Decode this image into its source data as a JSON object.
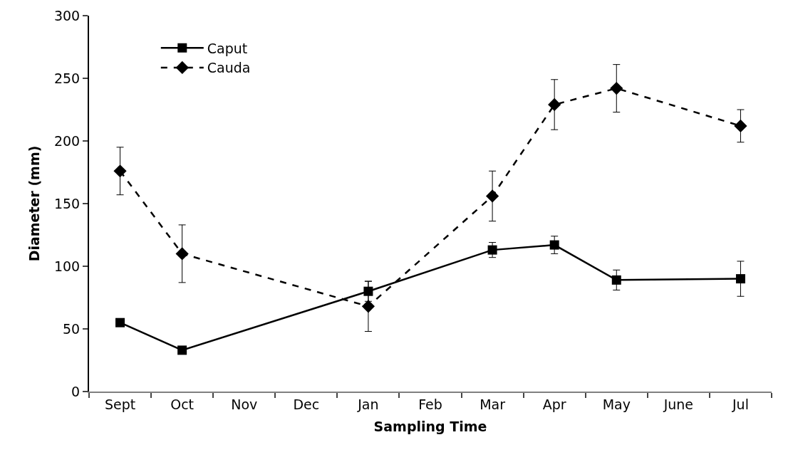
{
  "chart_data": {
    "type": "line",
    "xlabel": "Sampling Time",
    "ylabel": "Diameter (mm)",
    "categories": [
      "Sept",
      "Oct",
      "Nov",
      "Dec",
      "Jan",
      "Feb",
      "Mar",
      "Apr",
      "May",
      "June",
      "Jul"
    ],
    "series": [
      {
        "name": "Caput",
        "color": "#000000",
        "marker": "square",
        "line_style": "solid",
        "values": [
          55,
          33,
          null,
          null,
          80,
          null,
          113,
          117,
          89,
          null,
          90
        ],
        "errors": [
          null,
          null,
          null,
          null,
          8,
          null,
          6,
          7,
          8,
          null,
          14
        ]
      },
      {
        "name": "Cauda",
        "color": "#000000",
        "marker": "diamond",
        "line_style": "dashed",
        "values": [
          176,
          110,
          null,
          null,
          68,
          null,
          156,
          229,
          242,
          null,
          212
        ],
        "errors": [
          19,
          23,
          null,
          null,
          20,
          null,
          20,
          20,
          19,
          null,
          13
        ]
      }
    ],
    "ylim": [
      0,
      300
    ],
    "yticks": [
      0,
      50,
      100,
      150,
      200,
      250,
      300
    ],
    "legend": "top left"
  }
}
